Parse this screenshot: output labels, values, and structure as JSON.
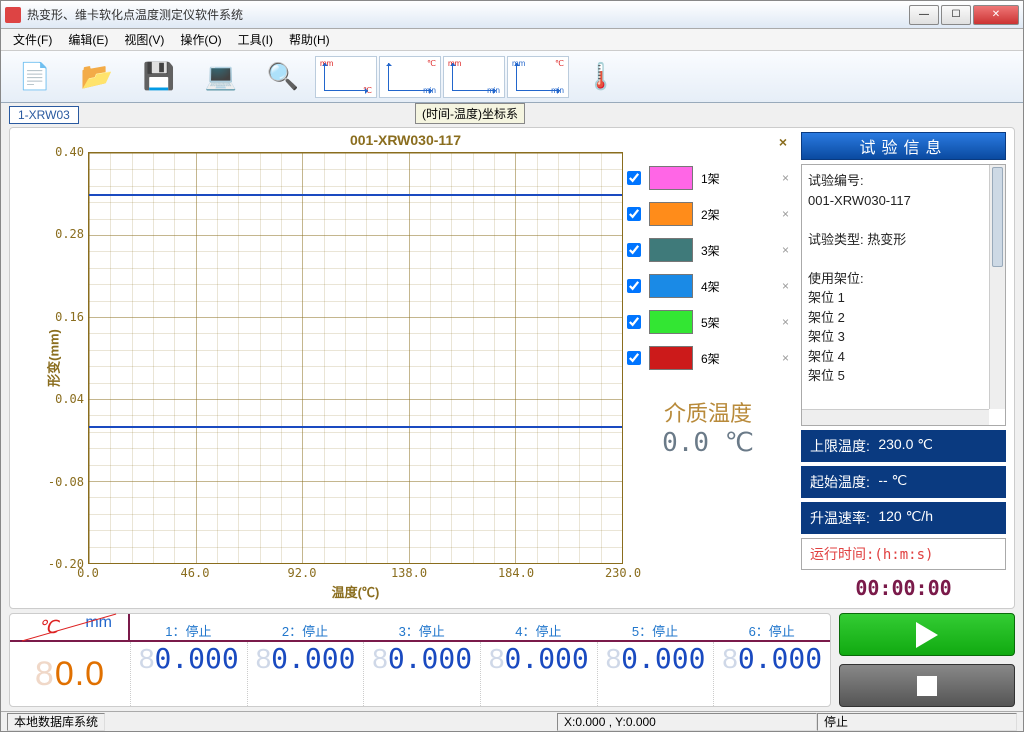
{
  "window": {
    "title": "热变形、维卡软化点温度测定仪软件系统"
  },
  "menu": {
    "file": "文件(F)",
    "edit": "编辑(E)",
    "view": "视图(V)",
    "operate": "操作(O)",
    "tools": "工具(I)",
    "help": "帮助(H)"
  },
  "toolbar_chartbtns": [
    {
      "tl": "mm",
      "br": "℃"
    },
    {
      "tr": "℃",
      "br": "min"
    },
    {
      "tl": "mm",
      "br": "min"
    },
    {
      "tr": "℃",
      "tl": "mm",
      "br": "min"
    }
  ],
  "tabs": {
    "active": "1-XRW03"
  },
  "coord_label": "(时间-温度)坐标系",
  "chart": {
    "type": "line",
    "title": "001-XRW030-117",
    "xlabel": "温度(℃)",
    "ylabel": "形变(mm)",
    "xlim": [
      0,
      230
    ],
    "ylim": [
      -0.2,
      0.4
    ],
    "xticks": [
      0.0,
      46.0,
      92.0,
      138.0,
      184.0,
      230.0
    ],
    "yticks": [
      -0.2,
      -0.08,
      0.04,
      0.16,
      0.28,
      0.4
    ],
    "xtick_labels": [
      "0.0",
      "46.0",
      "92.0",
      "138.0",
      "184.0",
      "230.0"
    ],
    "ytick_labels": [
      "-0.20",
      "-0.08",
      "0.04",
      "0.16",
      "0.28",
      "0.40"
    ],
    "grid_color": "#8a6d1e",
    "minor_grid": true,
    "reference_lines": [
      {
        "y": 0.34,
        "color": "#1a4ac0",
        "width": 2
      },
      {
        "y": 0.0,
        "color": "#1a4ac0",
        "width": 2
      }
    ],
    "series": [
      {
        "label": "1架",
        "color": "#ff66e6",
        "checked": true
      },
      {
        "label": "2架",
        "color": "#ff8c1a",
        "checked": true
      },
      {
        "label": "3架",
        "color": "#3f7a7a",
        "checked": true
      },
      {
        "label": "4架",
        "color": "#1a8ae6",
        "checked": true
      },
      {
        "label": "5架",
        "color": "#33e633",
        "checked": true
      },
      {
        "label": "6架",
        "color": "#cc1a1a",
        "checked": true
      }
    ],
    "media_temp_label": "介质温度",
    "media_temp_value": "0.0 ℃"
  },
  "infoPanel": {
    "heading": "试验信息",
    "test_no_label": "试验编号:",
    "test_no": "001-XRW030-117",
    "type_label": "试验类型:",
    "type_value": "热变形",
    "rack_label": "使用架位:",
    "racks": [
      "架位 1",
      "架位 2",
      "架位 3",
      "架位 4",
      "架位 5"
    ],
    "upper_temp_label": "上限温度:",
    "upper_temp": "230.0 ℃",
    "start_temp_label": "起始温度:",
    "start_temp": "-- ℃",
    "rate_label": "升温速率:",
    "rate_value": "120 ℃/h",
    "elapsed_label": "运行时间:(h:m:s)",
    "elapsed_value": "00:00:00"
  },
  "readouts": {
    "c_label": "℃",
    "mm_label": "mm",
    "channels": [
      {
        "head": "1：停止",
        "value": "0.000"
      },
      {
        "head": "2：停止",
        "value": "0.000"
      },
      {
        "head": "3：停止",
        "value": "0.000"
      },
      {
        "head": "4：停止",
        "value": "0.000"
      },
      {
        "head": "5：停止",
        "value": "0.000"
      },
      {
        "head": "6：停止",
        "value": "0.000"
      }
    ],
    "temp_ghost": "8",
    "temp_value": "0.0"
  },
  "statusbar": {
    "db": "本地数据库系统",
    "coords": "X:0.000 , Y:0.000",
    "state": "停止"
  }
}
